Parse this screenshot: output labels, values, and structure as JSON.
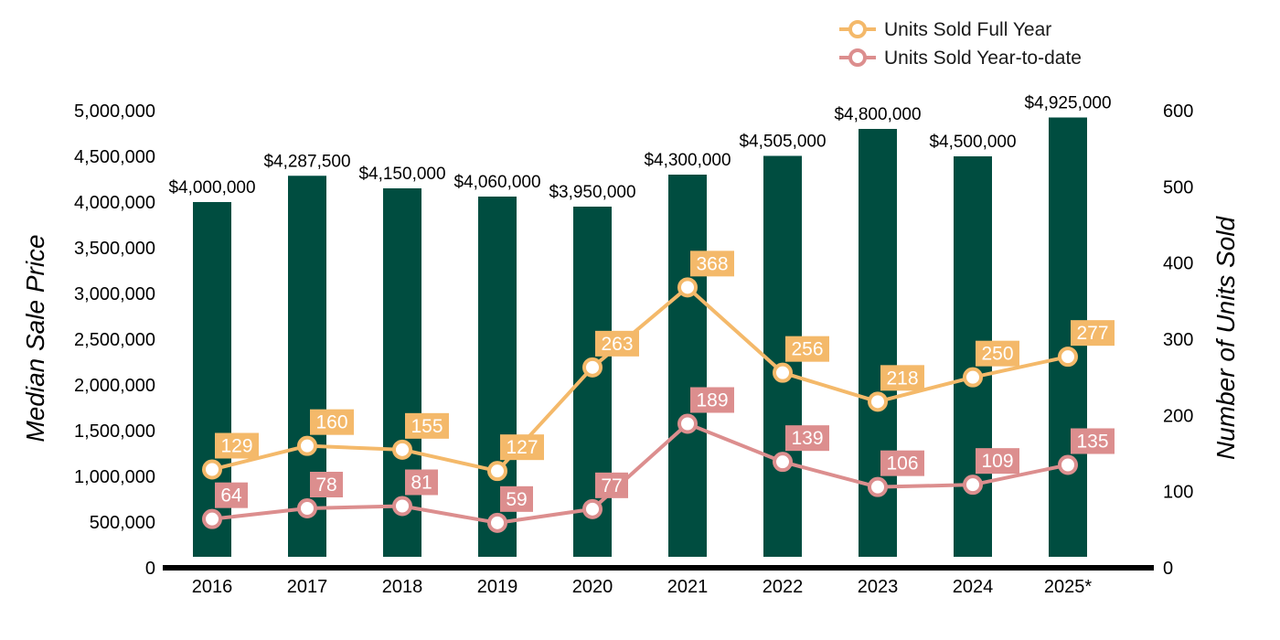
{
  "chart_data": {
    "type": "bar",
    "categories": [
      "2016",
      "2017",
      "2018",
      "2019",
      "2020",
      "2021",
      "2022",
      "2023",
      "2024",
      "2025*"
    ],
    "bars": {
      "values": [
        4000000,
        4287500,
        4150000,
        4060000,
        3950000,
        4300000,
        4505000,
        4800000,
        4500000,
        4925000
      ],
      "labels": [
        "$4,000,000",
        "$4,287,500",
        "$4,150,000",
        "$4,060,000",
        "$3,950,000",
        "$4,300,000",
        "$4,505,000",
        "$4,800,000",
        "$4,500,000",
        "$4,925,000"
      ],
      "color": "#004D40"
    },
    "series": [
      {
        "name": "Units Sold Full Year",
        "type": "line",
        "axis": "right",
        "color": "#F4B96A",
        "values": [
          129,
          160,
          155,
          127,
          263,
          368,
          256,
          218,
          250,
          277
        ]
      },
      {
        "name": "Units Sold Year-to-date",
        "type": "line",
        "axis": "right",
        "color": "#DC8E8E",
        "values": [
          64,
          78,
          81,
          59,
          77,
          189,
          139,
          106,
          109,
          135
        ]
      }
    ],
    "ylabel": "Median Sale Price",
    "y2label": "Number of Units Sold",
    "ylim": [
      0,
      5000000
    ],
    "y2lim": [
      0,
      600
    ],
    "y_ticks": [
      "0",
      "500,000",
      "1,000,000",
      "1,500,000",
      "2,000,000",
      "2,500,000",
      "3,000,000",
      "3,500,000",
      "4,000,000",
      "4,500,000",
      "5,000,000"
    ],
    "y2_ticks": [
      "0",
      "100",
      "200",
      "300",
      "400",
      "500",
      "600"
    ],
    "legend_position": "top-right",
    "grid": false
  }
}
